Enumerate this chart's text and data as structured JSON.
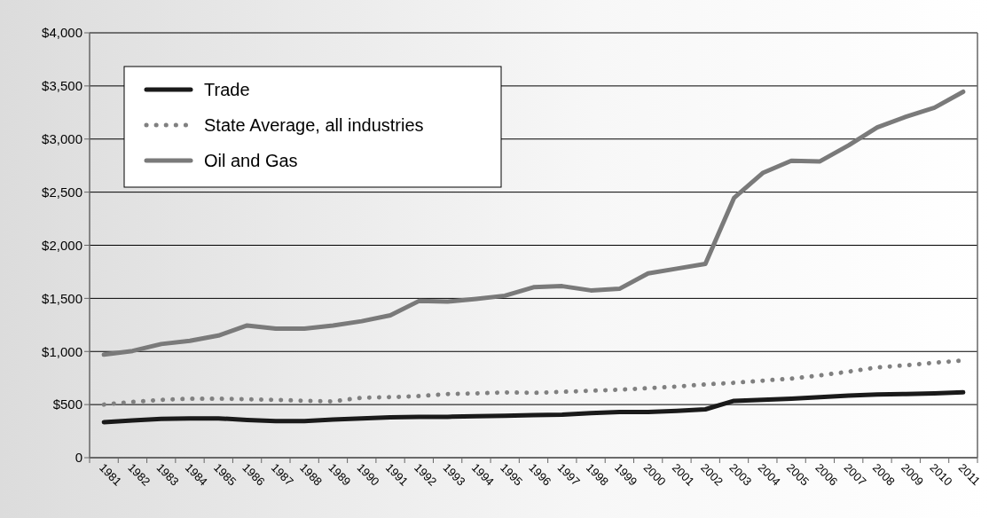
{
  "chart_data": {
    "type": "line",
    "categories": [
      "1981",
      "1982",
      "1983",
      "1984",
      "1985",
      "1986",
      "1987",
      "1988",
      "1989",
      "1990",
      "1991",
      "1992",
      "1993",
      "1994",
      "1995",
      "1996",
      "1997",
      "1998",
      "1999",
      "2000",
      "2001",
      "2002",
      "2003",
      "2004",
      "2005",
      "2006",
      "2007",
      "2008",
      "2009",
      "2010",
      "2011"
    ],
    "series": [
      {
        "name": "Trade",
        "color": "#1a1a1a",
        "line_style": "solid",
        "values": [
          335,
          350,
          365,
          370,
          370,
          355,
          345,
          345,
          360,
          370,
          380,
          385,
          385,
          390,
          395,
          400,
          405,
          420,
          430,
          430,
          440,
          455,
          535,
          545,
          555,
          570,
          585,
          595,
          600,
          605,
          615
        ]
      },
      {
        "name": "State Average, all industries",
        "color": "#808080",
        "line_style": "dotted",
        "values": [
          500,
          525,
          545,
          555,
          555,
          550,
          545,
          535,
          530,
          565,
          570,
          580,
          600,
          605,
          615,
          610,
          620,
          630,
          640,
          655,
          670,
          690,
          705,
          725,
          745,
          775,
          810,
          850,
          870,
          895,
          915
        ]
      },
      {
        "name": "Oil and Gas",
        "color": "#7a7a7a",
        "line_style": "solid",
        "values": [
          970,
          1005,
          1070,
          1100,
          1150,
          1245,
          1215,
          1215,
          1245,
          1285,
          1340,
          1475,
          1470,
          1495,
          1525,
          1605,
          1615,
          1575,
          1590,
          1735,
          1780,
          1825,
          2445,
          2680,
          2795,
          2790,
          2940,
          3110,
          3210,
          3295,
          3445
        ]
      }
    ],
    "ylim": [
      0,
      4000
    ],
    "yticks": [
      {
        "value": 0,
        "label": "0"
      },
      {
        "value": 500,
        "label": "$500"
      },
      {
        "value": 1000,
        "label": "$1,000"
      },
      {
        "value": 1500,
        "label": "$1,500"
      },
      {
        "value": 2000,
        "label": "$2,000"
      },
      {
        "value": 2500,
        "label": "$2,500"
      },
      {
        "value": 3000,
        "label": "$3,000"
      },
      {
        "value": 3500,
        "label": "$3,500"
      },
      {
        "value": 4000,
        "label": "$4,000"
      }
    ],
    "grid": "y",
    "legend": "top left",
    "marker": "none"
  }
}
